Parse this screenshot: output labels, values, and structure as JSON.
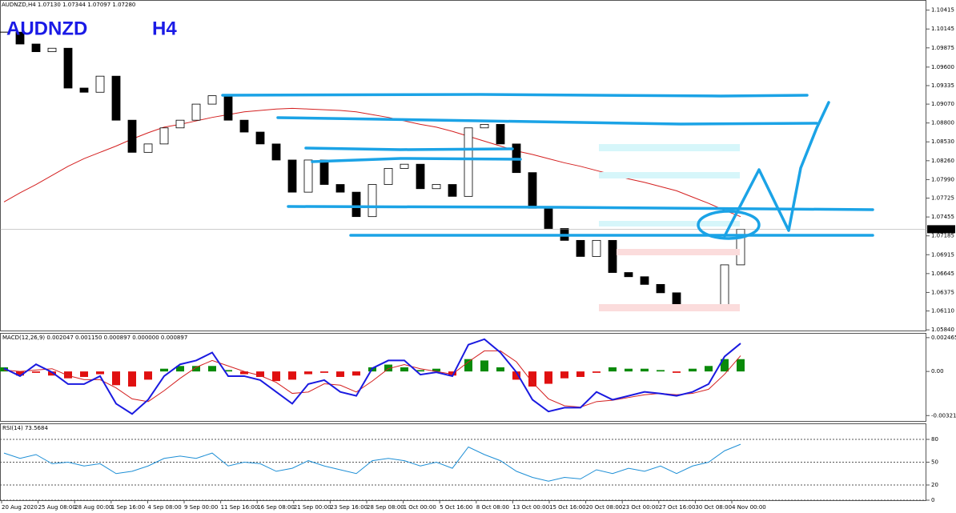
{
  "header": "AUDNZD,H4  1.07130 1.07344 1.07097 1.07280",
  "x_labels": [
    "20 Aug 2020",
    "25 Aug 08:00",
    "28 Aug 00:00",
    "1 Sep 16:00",
    "4 Sep 08:00",
    "9 Sep 00:00",
    "11 Sep 16:00",
    "16 Sep 08:00",
    "21 Sep 00:00",
    "23 Sep 16:00",
    "28 Sep 08:00",
    "1 Oct 00:00",
    "5 Oct 16:00",
    "8 Oct 08:00",
    "13 Oct 00:00",
    "15 Oct 16:00",
    "20 Oct 08:00",
    "23 Oct 00:00",
    "27 Oct 16:00",
    "30 Oct 08:00",
    "4 Nov 00:00"
  ],
  "chart_data": [
    {
      "type": "candlestick",
      "title": "AUDNZD",
      "subtitle": "H4",
      "values": [
        1.101,
        1.0993,
        1.0982,
        1.0987,
        1.093,
        1.0924,
        1.0947,
        1.0884,
        1.0838,
        1.085,
        1.0873,
        1.0884,
        1.0907,
        1.0919,
        1.0884,
        1.0867,
        1.085,
        1.0827,
        1.0781,
        1.0827,
        1.0792,
        1.0781,
        1.0746,
        1.0792,
        1.0815,
        1.0821,
        1.0786,
        1.0792,
        1.0775,
        1.0873,
        1.0878,
        1.085,
        1.0809,
        1.0758,
        1.0729,
        1.0712,
        1.0689,
        1.0712,
        1.0666,
        1.066,
        1.0649,
        1.0637,
        1.0614,
        1.062,
        1.0614,
        1.0677,
        1.0728
      ],
      "up_color": "#ffffff",
      "down_color": "#000000",
      "ma": {
        "color": "#d42020",
        "values": [
          1.0767,
          1.078,
          1.0792,
          1.0805,
          1.0818,
          1.0829,
          1.0838,
          1.0847,
          1.0857,
          1.0866,
          1.0874,
          1.0878,
          1.0883,
          1.0888,
          1.0892,
          1.0896,
          1.0898,
          1.09,
          1.0901,
          1.09,
          1.0899,
          1.0898,
          1.0896,
          1.0892,
          1.0888,
          1.0883,
          1.0878,
          1.0874,
          1.0868,
          1.0861,
          1.0854,
          1.0847,
          1.084,
          1.0835,
          1.0829,
          1.0823,
          1.0818,
          1.0812,
          1.0806,
          1.08,
          1.0795,
          1.0789,
          1.0783,
          1.0774,
          1.0765,
          1.0755,
          1.0746
        ]
      },
      "last_price": {
        "value": 1.0728,
        "label": "1.07280"
      },
      "ylim": [
        1.0583,
        1.1056
      ],
      "yticks": [
        1.10415,
        1.10145,
        1.09875,
        {
          "value": 1.096,
          "label": "1.09600"
        },
        1.09335,
        {
          "value": 1.0907,
          "label": "1.09070"
        },
        {
          "value": 1.088,
          "label": "1.08800"
        },
        {
          "value": 1.0853,
          "label": "1.08530"
        },
        {
          "value": 1.0826,
          "label": "1.08260"
        },
        {
          "value": 1.0799,
          "label": "1.07990"
        },
        1.07725,
        1.07455,
        1.07185,
        1.06915,
        1.06645,
        1.06375,
        {
          "value": 1.0611,
          "label": "1.06110"
        },
        {
          "value": 1.0584,
          "label": "1.05840"
        }
      ]
    },
    {
      "type": "macd",
      "title": "MACD(12,26,9) 0.002047 0.001150 0.000897 0.000000 0.000897",
      "histogram": {
        "up_color": "#0a8a0a",
        "down_color": "#e01010",
        "values": [
          0.0003,
          -0.0003,
          -0.0001,
          -0.0003,
          -0.0005,
          -0.0004,
          -0.0002,
          -0.001,
          -0.0011,
          -0.0006,
          0.0002,
          0.0004,
          0.0004,
          0.0004,
          0.0001,
          -0.0002,
          -0.0004,
          -0.0007,
          -0.0006,
          -0.0002,
          -0.0001,
          -0.0004,
          -0.0003,
          0.0003,
          0.0005,
          0.0003,
          0.0001,
          0.0002,
          -0.0003,
          0.0009,
          0.0008,
          0.0003,
          -0.0006,
          -0.0011,
          -0.0009,
          -0.0005,
          -0.0004,
          -0.0001,
          0.0003,
          0.0002,
          0.0002,
          0.0001,
          -0.0001,
          0.0002,
          0.0004,
          0.0009,
          0.000897
        ]
      },
      "main": {
        "color": "#1a1ae0",
        "values": [
          0.00023,
          -0.00034,
          0.00052,
          -6e-05,
          -0.00092,
          -0.00092,
          -0.00034,
          -0.00235,
          -0.0031,
          -0.00206,
          -0.00034,
          0.00052,
          0.0008,
          0.00138,
          -0.00034,
          -0.00034,
          -0.00063,
          -0.00149,
          -0.00235,
          -0.00092,
          -0.00063,
          -0.00149,
          -0.00178,
          0.00023,
          0.0008,
          0.0008,
          -0.00023,
          -6e-05,
          -0.00034,
          0.00195,
          0.00235,
          0.00138,
          -6e-05,
          -0.00206,
          -0.00292,
          -0.00264,
          -0.00264,
          -0.00149,
          -0.00206,
          -0.00178,
          -0.00149,
          -0.00161,
          -0.00178,
          -0.00149,
          -0.00092,
          0.00109,
          0.002047
        ]
      },
      "signal": {
        "color": "#d42020",
        "values": [
          0.0001,
          0,
          0.0001,
          0.0002,
          -0.0003,
          -0.0006,
          -0.0006,
          -0.0012,
          -0.002,
          -0.0022,
          -0.0014,
          -0.0005,
          0.0003,
          0.0008,
          0.0004,
          0,
          -0.0003,
          -0.0008,
          -0.0016,
          -0.0015,
          -0.0009,
          -0.001,
          -0.0015,
          -0.0007,
          0.0002,
          0.0005,
          0.0002,
          0,
          -0.0002,
          0.0007,
          0.0015,
          0.0015,
          0.0007,
          -0.0008,
          -0.002,
          -0.0025,
          -0.0026,
          -0.0022,
          -0.0021,
          -0.0019,
          -0.0017,
          -0.0016,
          -0.0017,
          -0.0016,
          -0.0013,
          -0.0002,
          0.00115
        ]
      },
      "ylim": [
        -0.00361,
        0.00275
      ],
      "yticks": [
        0.002465,
        {
          "value": 0,
          "label": "0.00"
        },
        -0.003217
      ]
    },
    {
      "type": "line",
      "title": "RSI(14) 73.5684",
      "color": "#1e8fd6",
      "values": [
        62,
        55,
        60,
        48,
        50,
        45,
        48,
        35,
        38,
        45,
        55,
        58,
        55,
        62,
        45,
        50,
        48,
        38,
        42,
        52,
        45,
        40,
        35,
        52,
        55,
        52,
        45,
        50,
        42,
        70,
        60,
        52,
        38,
        30,
        25,
        30,
        28,
        40,
        35,
        42,
        38,
        45,
        35,
        45,
        50,
        65,
        73.5684
      ],
      "ylim": [
        0,
        100
      ],
      "yticks": [
        80,
        50,
        20,
        0
      ],
      "grid": true
    }
  ]
}
